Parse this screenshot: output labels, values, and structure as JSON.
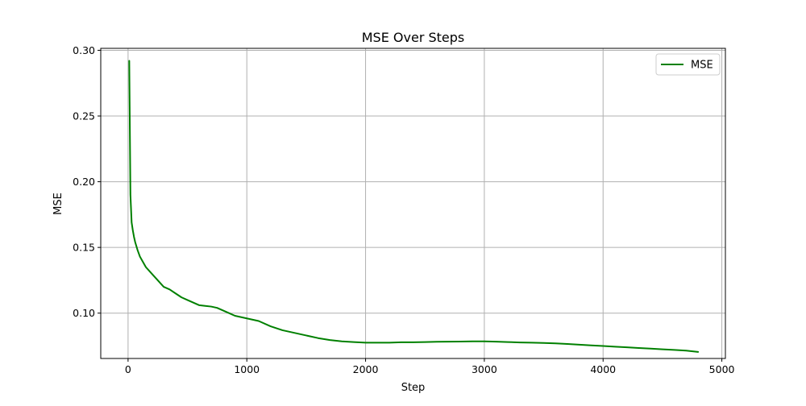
{
  "colors": {
    "series": "#008000",
    "grid": "#b0b0b0",
    "axis": "#000000",
    "legend_border": "#cccccc"
  },
  "chart_data": {
    "type": "line",
    "title": "MSE Over Steps",
    "xlabel": "Step",
    "ylabel": "MSE",
    "xlim": [
      -230,
      5030
    ],
    "ylim": [
      0.0655,
      0.3015
    ],
    "xticks": [
      0,
      1000,
      2000,
      3000,
      4000,
      5000
    ],
    "yticks": [
      0.1,
      0.15,
      0.2,
      0.25,
      0.3
    ],
    "xtick_labels": [
      "0",
      "1000",
      "2000",
      "3000",
      "4000",
      "5000"
    ],
    "ytick_labels": [
      "0.10",
      "0.15",
      "0.20",
      "0.25",
      "0.30"
    ],
    "grid": true,
    "legend_position": "top-right",
    "series": [
      {
        "name": "MSE",
        "color": "#008000",
        "x": [
          10,
          20,
          30,
          40,
          50,
          60,
          80,
          100,
          125,
          150,
          200,
          250,
          300,
          350,
          400,
          450,
          500,
          550,
          600,
          650,
          700,
          750,
          800,
          850,
          900,
          950,
          1000,
          1100,
          1200,
          1300,
          1400,
          1500,
          1600,
          1700,
          1800,
          1900,
          2000,
          2100,
          2200,
          2300,
          2400,
          2500,
          2600,
          2700,
          2800,
          2900,
          3000,
          3100,
          3200,
          3300,
          3400,
          3500,
          3600,
          3700,
          3800,
          3900,
          4000,
          4100,
          4200,
          4300,
          4400,
          4500,
          4600,
          4700,
          4800
        ],
        "y": [
          0.292,
          0.19,
          0.169,
          0.163,
          0.158,
          0.154,
          0.148,
          0.143,
          0.139,
          0.135,
          0.13,
          0.125,
          0.12,
          0.118,
          0.115,
          0.112,
          0.11,
          0.108,
          0.106,
          0.1055,
          0.105,
          0.104,
          0.102,
          0.1,
          0.098,
          0.097,
          0.096,
          0.094,
          0.09,
          0.087,
          0.085,
          0.083,
          0.081,
          0.0795,
          0.0785,
          0.078,
          0.0775,
          0.0775,
          0.0775,
          0.0778,
          0.0778,
          0.078,
          0.0782,
          0.0783,
          0.0784,
          0.0785,
          0.0785,
          0.0783,
          0.078,
          0.0777,
          0.0775,
          0.0773,
          0.077,
          0.0765,
          0.076,
          0.0755,
          0.075,
          0.0745,
          0.074,
          0.0735,
          0.073,
          0.0725,
          0.072,
          0.0715,
          0.0705
        ]
      }
    ]
  }
}
